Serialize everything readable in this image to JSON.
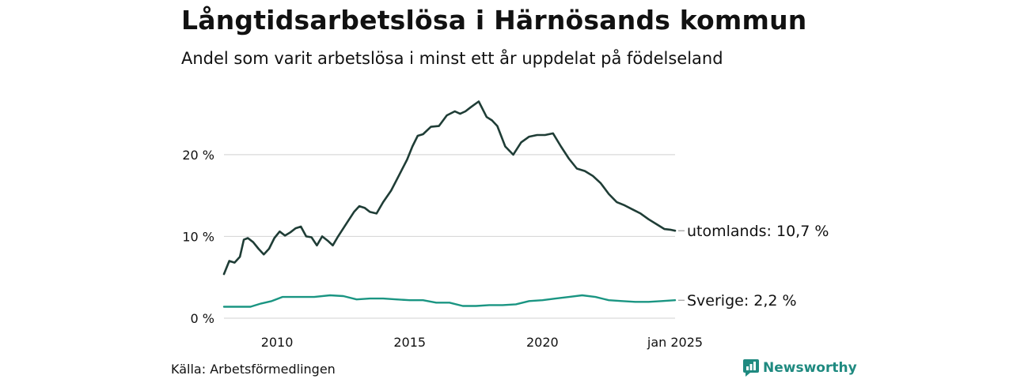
{
  "header": {
    "title": "Långtidsarbetslösa i Härnösands kommun",
    "subtitle": "Andel som varit arbetslösa i minst ett år uppdelat på födelseland"
  },
  "footer": {
    "source": "Källa: Arbetsförmedlingen",
    "brand": "Newsworthy"
  },
  "colors": {
    "utomlands": "#1f3d36",
    "sverige": "#1a9582",
    "grid": "#d9d9d9",
    "brand": "#1f8a80"
  },
  "icons": {
    "brand_logo": "newsworthy-logo-icon"
  },
  "chart_data": {
    "type": "line",
    "x_unit": "year",
    "xlim": [
      2008.0,
      2025.0
    ],
    "ylim": [
      0,
      28
    ],
    "y_ticks": [
      0,
      10,
      20
    ],
    "y_tick_labels": [
      "0 %",
      "10 %",
      "20 %"
    ],
    "x_ticks": [
      2010,
      2015,
      2020,
      2025
    ],
    "x_tick_labels": [
      "2010",
      "2015",
      "2020",
      "jan 2025"
    ],
    "grid": "horizontal",
    "series": [
      {
        "name": "utomlands",
        "label": "utomlands: 10,7 %",
        "x": [
          2008.0,
          2008.2,
          2008.4,
          2008.6,
          2008.75,
          2008.9,
          2009.1,
          2009.3,
          2009.5,
          2009.7,
          2009.9,
          2010.1,
          2010.3,
          2010.5,
          2010.7,
          2010.9,
          2011.1,
          2011.3,
          2011.5,
          2011.7,
          2011.9,
          2012.1,
          2012.3,
          2012.6,
          2012.9,
          2013.1,
          2013.3,
          2013.5,
          2013.75,
          2014.0,
          2014.3,
          2014.6,
          2014.9,
          2015.1,
          2015.3,
          2015.5,
          2015.8,
          2016.1,
          2016.4,
          2016.7,
          2016.9,
          2017.1,
          2017.3,
          2017.6,
          2017.9,
          2018.1,
          2018.3,
          2018.6,
          2018.9,
          2019.2,
          2019.5,
          2019.8,
          2020.1,
          2020.4,
          2020.7,
          2021.0,
          2021.3,
          2021.6,
          2021.9,
          2022.2,
          2022.5,
          2022.8,
          2023.1,
          2023.4,
          2023.7,
          2024.0,
          2024.3,
          2024.6,
          2024.85,
          2025.0
        ],
        "y": [
          5.4,
          7.0,
          6.8,
          7.5,
          9.6,
          9.8,
          9.3,
          8.5,
          7.8,
          8.5,
          9.8,
          10.6,
          10.1,
          10.5,
          11.0,
          11.2,
          10.0,
          9.9,
          8.9,
          10.0,
          9.5,
          8.9,
          10.0,
          11.5,
          13.0,
          13.7,
          13.5,
          13.0,
          12.8,
          14.2,
          15.6,
          17.5,
          19.4,
          21.0,
          22.3,
          22.5,
          23.4,
          23.5,
          24.8,
          25.3,
          25.0,
          25.3,
          25.8,
          26.5,
          24.6,
          24.2,
          23.5,
          21.0,
          20.0,
          21.5,
          22.2,
          22.4,
          22.4,
          22.6,
          21.0,
          19.5,
          18.3,
          18.0,
          17.4,
          16.5,
          15.2,
          14.2,
          13.8,
          13.3,
          12.8,
          12.1,
          11.5,
          10.9,
          10.8,
          10.7
        ]
      },
      {
        "name": "Sverige",
        "label": "Sverige:  2,2 %",
        "x": [
          2008.0,
          2008.5,
          2009.0,
          2009.4,
          2009.8,
          2010.2,
          2010.8,
          2011.4,
          2012.0,
          2012.5,
          2013.0,
          2013.5,
          2014.0,
          2014.5,
          2015.0,
          2015.5,
          2016.0,
          2016.5,
          2017.0,
          2017.5,
          2018.0,
          2018.5,
          2019.0,
          2019.5,
          2020.0,
          2020.5,
          2021.0,
          2021.5,
          2022.0,
          2022.5,
          2023.0,
          2023.5,
          2024.0,
          2024.5,
          2025.0
        ],
        "y": [
          1.4,
          1.4,
          1.4,
          1.8,
          2.1,
          2.6,
          2.6,
          2.6,
          2.8,
          2.7,
          2.3,
          2.4,
          2.4,
          2.3,
          2.2,
          2.2,
          1.9,
          1.9,
          1.5,
          1.5,
          1.6,
          1.6,
          1.7,
          2.1,
          2.2,
          2.4,
          2.6,
          2.8,
          2.6,
          2.2,
          2.1,
          2.0,
          2.0,
          2.1,
          2.2
        ]
      }
    ]
  }
}
